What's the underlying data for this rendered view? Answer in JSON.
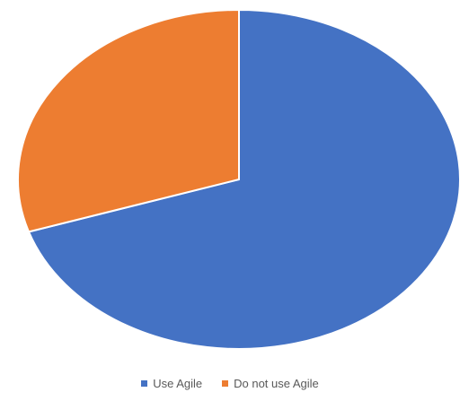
{
  "chart_data": {
    "type": "pie",
    "title": "",
    "categories": [
      "Use Agile",
      "Do not use Agile"
    ],
    "values": [
      70,
      30
    ],
    "colors": [
      "#4472C4",
      "#ED7D31"
    ],
    "legend_position": "bottom"
  },
  "legend": {
    "items": [
      {
        "label": "Use Agile",
        "color": "#4472C4"
      },
      {
        "label": "Do not use Agile",
        "color": "#ED7D31"
      }
    ]
  }
}
